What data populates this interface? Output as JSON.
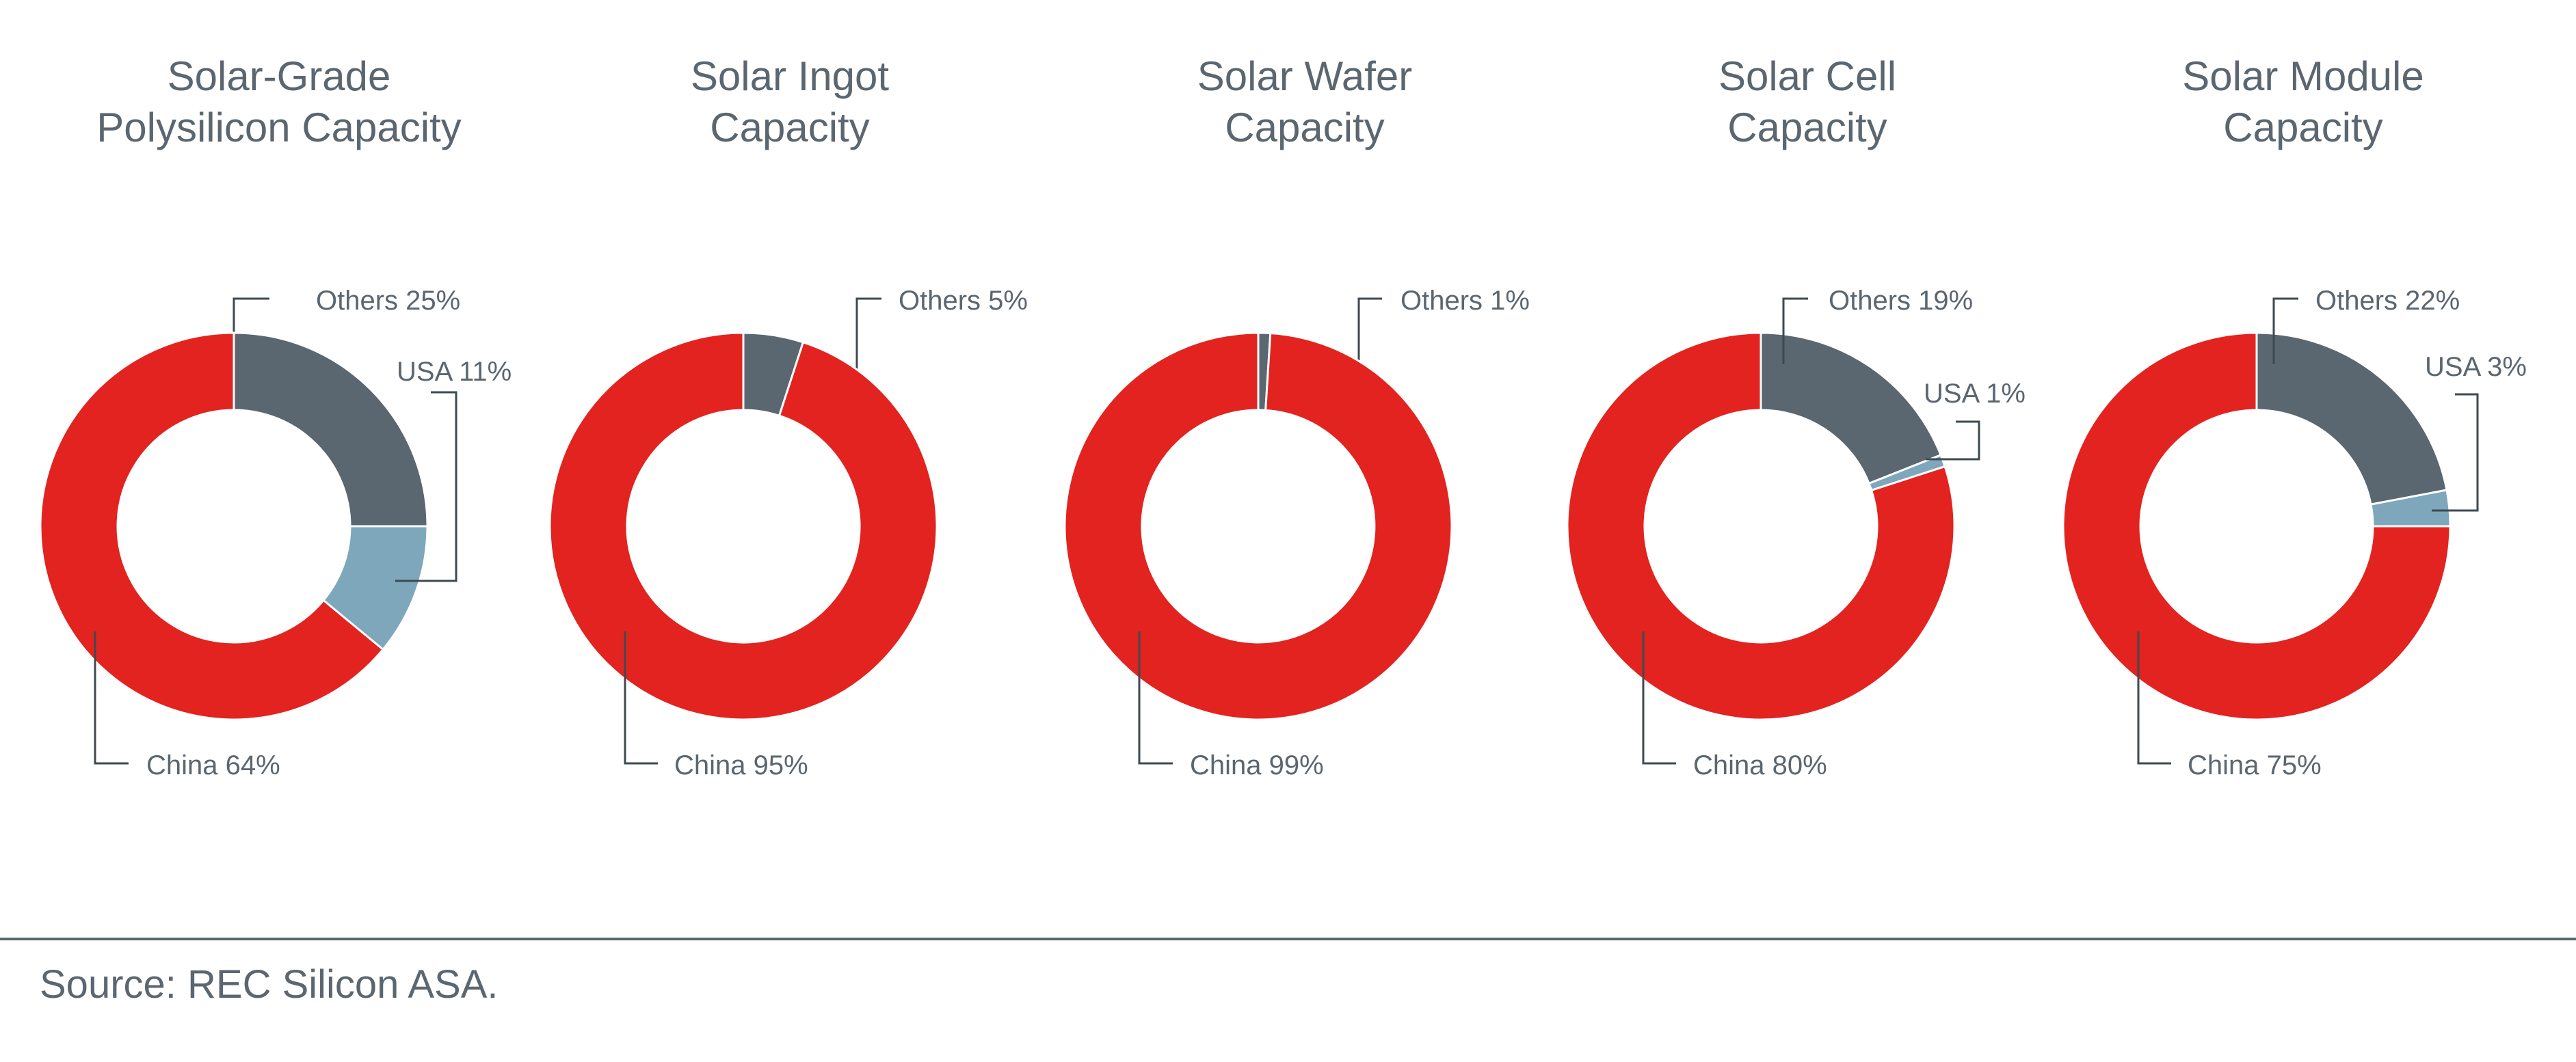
{
  "chart_data": [
    {
      "type": "pie",
      "title": [
        "Solar-Grade",
        "Polysilicon Capacity"
      ],
      "slices": [
        {
          "label": "Others 25%",
          "name": "Others",
          "value": 25,
          "color": "#5a6670"
        },
        {
          "label": "USA 11%",
          "name": "USA",
          "value": 11,
          "color": "#7ea7bc"
        },
        {
          "label": "China 64%",
          "name": "China",
          "value": 64,
          "color": "#e2231f"
        }
      ]
    },
    {
      "type": "pie",
      "title": [
        "Solar Ingot",
        "Capacity"
      ],
      "slices": [
        {
          "label": "Others 5%",
          "name": "Others",
          "value": 5,
          "color": "#5a6670"
        },
        {
          "label": "China 95%",
          "name": "China",
          "value": 95,
          "color": "#e2231f"
        }
      ]
    },
    {
      "type": "pie",
      "title": [
        "Solar Wafer",
        "Capacity"
      ],
      "slices": [
        {
          "label": "Others 1%",
          "name": "Others",
          "value": 1,
          "color": "#5a6670"
        },
        {
          "label": "China 99%",
          "name": "China",
          "value": 99,
          "color": "#e2231f"
        }
      ]
    },
    {
      "type": "pie",
      "title": [
        "Solar Cell",
        "Capacity"
      ],
      "slices": [
        {
          "label": "Others 19%",
          "name": "Others",
          "value": 19,
          "color": "#5a6670"
        },
        {
          "label": "USA 1%",
          "name": "USA",
          "value": 1,
          "color": "#7ea7bc"
        },
        {
          "label": "China 80%",
          "name": "China",
          "value": 80,
          "color": "#e2231f"
        }
      ]
    },
    {
      "type": "pie",
      "title": [
        "Solar Module",
        "Capacity"
      ],
      "slices": [
        {
          "label": "Others 22%",
          "name": "Others",
          "value": 22,
          "color": "#5a6670"
        },
        {
          "label": "USA 3%",
          "name": "USA",
          "value": 3,
          "color": "#7ea7bc"
        },
        {
          "label": "China 75%",
          "name": "China",
          "value": 75,
          "color": "#e2231f"
        }
      ]
    }
  ],
  "footer": {
    "source": "Source: REC Silicon ASA."
  }
}
